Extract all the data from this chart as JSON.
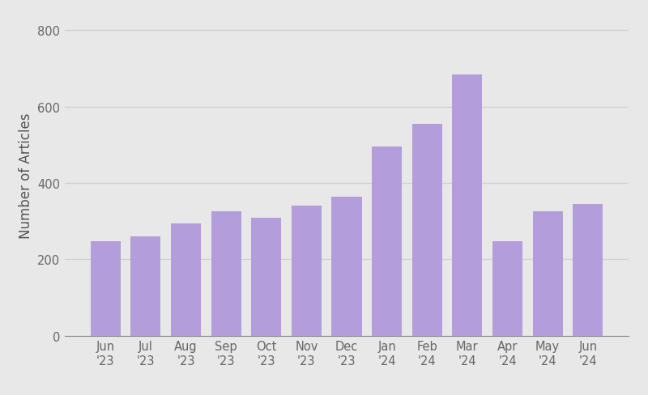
{
  "categories": [
    "Jun\n'23",
    "Jul\n'23",
    "Aug\n'23",
    "Sep\n'23",
    "Oct\n'23",
    "Nov\n'23",
    "Dec\n'23",
    "Jan\n'24",
    "Feb\n'24",
    "Mar\n'24",
    "Apr\n'24",
    "May\n'24",
    "Jun\n'24"
  ],
  "values": [
    248,
    260,
    295,
    325,
    308,
    340,
    365,
    495,
    555,
    685,
    248,
    325,
    345
  ],
  "bar_color": "#b39ddb",
  "ylabel": "Number of Articles",
  "ylim": [
    0,
    840
  ],
  "yticks": [
    0,
    200,
    400,
    600,
    800
  ],
  "background_color": "#e8e8e8",
  "grid_color": "#d0d0d0",
  "bar_width": 0.75,
  "ylabel_fontsize": 12,
  "tick_fontsize": 10.5,
  "ylabel_color": "#555555",
  "tick_color": "#666666"
}
